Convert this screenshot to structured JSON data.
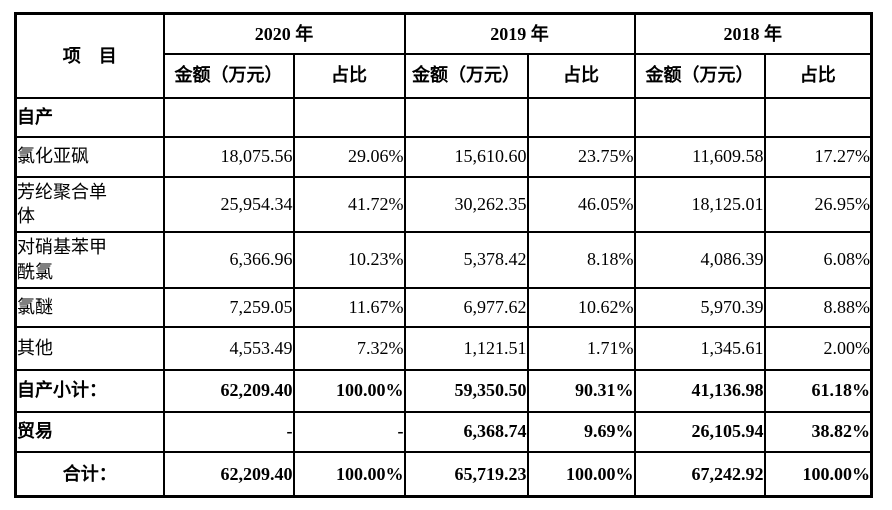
{
  "table": {
    "item_header": "项　目",
    "year_groups": [
      {
        "year": "2020 年",
        "amount_header": "金额（万元）",
        "share_header": "占比"
      },
      {
        "year": "2019 年",
        "amount_header": "金额（万元）",
        "share_header": "占比"
      },
      {
        "year": "2018 年",
        "amount_header": "金额（万元）",
        "share_header": "占比"
      }
    ],
    "rows": [
      {
        "label": "自产",
        "cells": [
          "",
          "",
          "",
          "",
          "",
          ""
        ]
      },
      {
        "label": "氯化亚砜",
        "cells": [
          "18,075.56",
          "29.06%",
          "15,610.60",
          "23.75%",
          "11,609.58",
          "17.27%"
        ]
      },
      {
        "label": "芳纶聚合单\n体",
        "cells": [
          "25,954.34",
          "41.72%",
          "30,262.35",
          "46.05%",
          "18,125.01",
          "26.95%"
        ]
      },
      {
        "label": "对硝基苯甲\n酰氯",
        "cells": [
          "6,366.96",
          "10.23%",
          "5,378.42",
          "8.18%",
          "4,086.39",
          "6.08%"
        ]
      },
      {
        "label": "氯醚",
        "cells": [
          "7,259.05",
          "11.67%",
          "6,977.62",
          "10.62%",
          "5,970.39",
          "8.88%"
        ]
      },
      {
        "label": "其他",
        "cells": [
          "4,553.49",
          "7.32%",
          "1,121.51",
          "1.71%",
          "1,345.61",
          "2.00%"
        ]
      },
      {
        "label": "自产小计：",
        "cells": [
          "62,209.40",
          "100.00%",
          "59,350.50",
          "90.31%",
          "41,136.98",
          "61.18%"
        ]
      },
      {
        "label": "贸易",
        "cells": [
          "-",
          "-",
          "6,368.74",
          "9.69%",
          "26,105.94",
          "38.82%"
        ]
      },
      {
        "label": "合计：",
        "cells": [
          "62,209.40",
          "100.00%",
          "65,719.23",
          "100.00%",
          "67,242.92",
          "100.00%"
        ]
      }
    ]
  }
}
